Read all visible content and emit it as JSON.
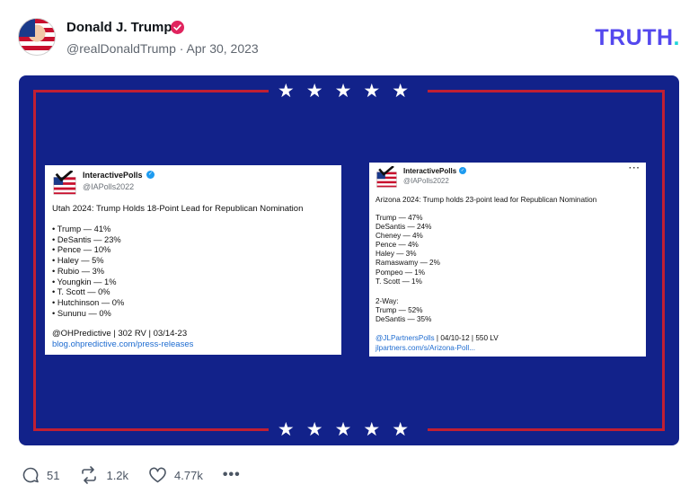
{
  "post": {
    "author_name": "Donald J. Trump",
    "handle": "@realDonaldTrump",
    "date": "Apr 30, 2023"
  },
  "brand": {
    "text": "TRUTH",
    "dot": "."
  },
  "banner": {
    "stars_top": "★★★★★",
    "stars_bottom": "★★★★★"
  },
  "cards": [
    {
      "account": "InteractivePolls",
      "handle": "@IAPolls2022",
      "more": "···",
      "title": "Utah 2024: Trump Holds 18-Point Lead for Republican Nomination",
      "lines": [
        "• Trump — 41%",
        "• DeSantis — 23%",
        "• Pence — 10%",
        "• Haley — 5%",
        "• Rubio — 3%",
        "• Youngkin — 1%",
        "• T. Scott — 0%",
        "• Hutchinson — 0%",
        "• Sununu — 0%"
      ],
      "source": "@OHPredictive | 302 RV | 03/14-23",
      "link": "blog.ohpredictive.com/press-releases"
    },
    {
      "account": "InteractivePolls",
      "handle": "@IAPolls2022",
      "more": "···",
      "title": "Arizona 2024: Trump holds 23-point lead for Republican Nomination",
      "lines": [
        "Trump — 47%",
        "DeSantis — 24%",
        "Cheney — 4%",
        "Pence — 4%",
        "Haley — 3%",
        "Ramaswamy — 2%",
        "Pompeo — 1%",
        "T. Scott — 1%"
      ],
      "two_way_label": "2-Way:",
      "two_way_lines": [
        "Trump — 52%",
        "DeSantis — 35%"
      ],
      "source_handle": "@JLPartnersPolls",
      "source_rest": " | 04/10-12 | 550 LV",
      "link": "jlpartners.com/s/Arizona-Poll..."
    }
  ],
  "actions": {
    "replies": "51",
    "retruths": "1.2k",
    "likes": "4.77k",
    "more": "•••"
  },
  "colors": {
    "banner": "#12228a",
    "frame": "#c01f33",
    "brand": "#5448ee",
    "brand_dot": "#1fd5d9",
    "link": "#1d6bd0",
    "verified_badge": "#e0245e"
  }
}
